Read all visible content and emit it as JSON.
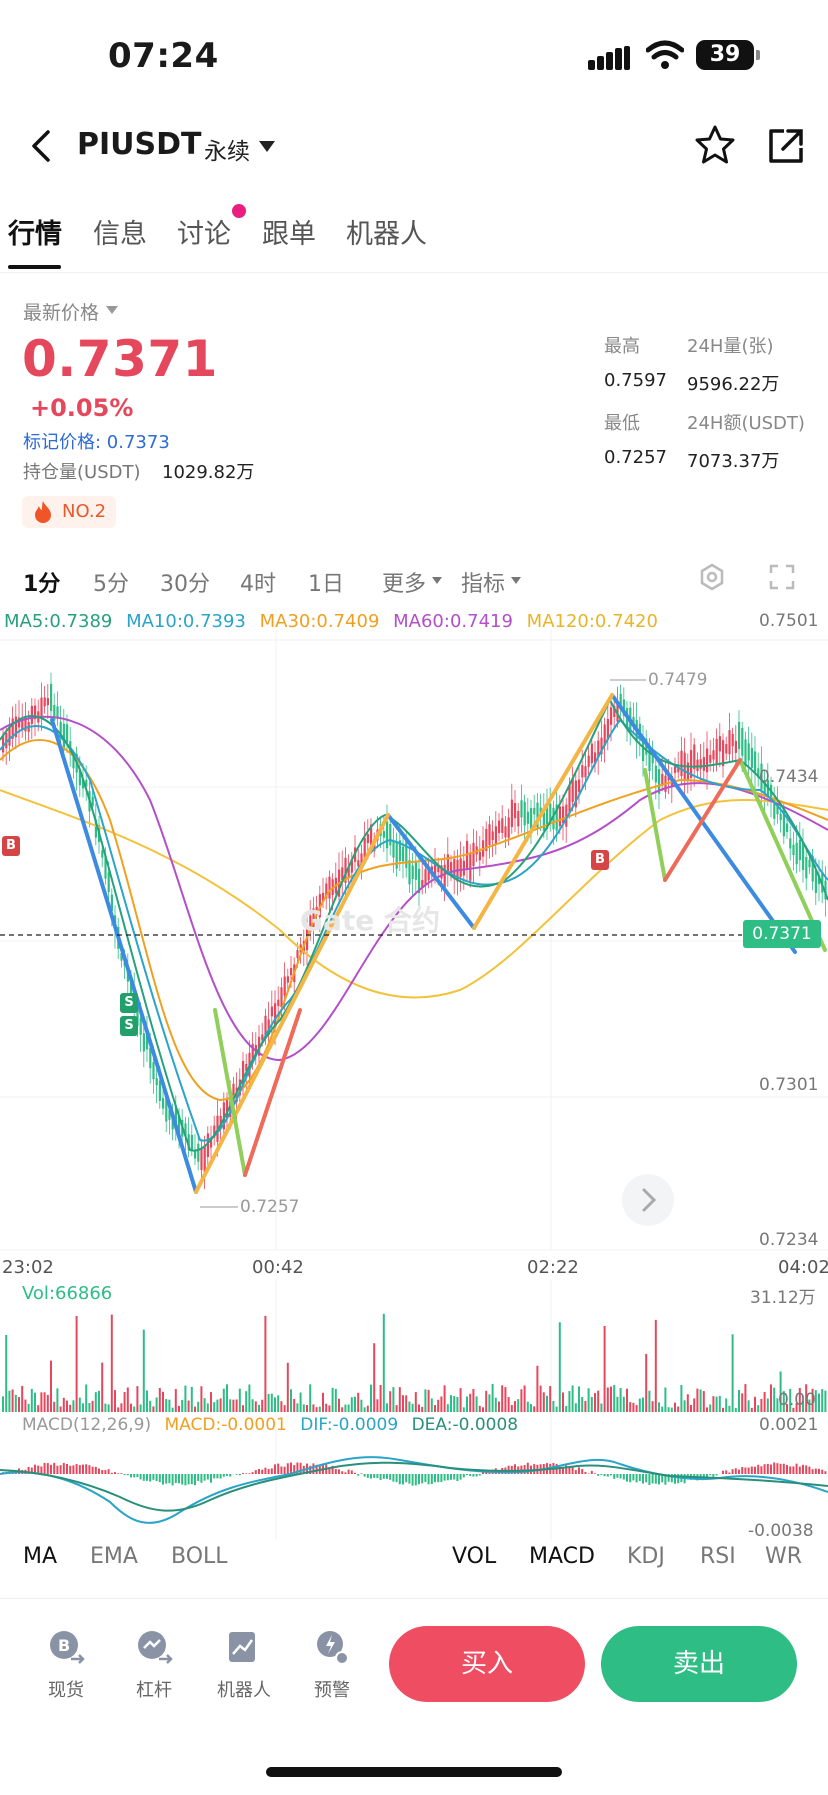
{
  "status": {
    "time": "07:24",
    "battery": "39"
  },
  "header": {
    "symbol": "PIUSDT",
    "contract": "永续",
    "icons": [
      "back-icon",
      "star-icon",
      "share-icon"
    ]
  },
  "tabs": [
    {
      "label": "行情",
      "active": true
    },
    {
      "label": "信息"
    },
    {
      "label": "讨论",
      "dot": true
    },
    {
      "label": "跟单"
    },
    {
      "label": "机器人"
    }
  ],
  "ticker": {
    "price_label": "最新价格",
    "price": "0.7371",
    "change": "+0.05%",
    "mark_price": "标记价格: 0.7373",
    "open_interest_label": "持仓量(USDT)",
    "open_interest": "1029.82万",
    "rank_badge": "NO.2",
    "high_label": "最高",
    "high": "0.7597",
    "low_label": "最低",
    "low": "0.7257",
    "vol_label": "24H量(张)",
    "vol": "9596.22万",
    "turnover_label": "24H额(USDT)",
    "turnover": "7073.37万"
  },
  "timeframes": {
    "items": [
      {
        "label": "1分",
        "active": true
      },
      {
        "label": "5分"
      },
      {
        "label": "30分"
      },
      {
        "label": "4时"
      },
      {
        "label": "1日"
      },
      {
        "label": "更多"
      },
      {
        "label": "指标"
      }
    ],
    "icons": [
      "settings-hex-icon",
      "fullscreen-icon"
    ]
  },
  "ma_legend": [
    {
      "text": "MA5:0.7389",
      "color": "#27a17b"
    },
    {
      "text": "MA10:0.7393",
      "color": "#2aa4c8"
    },
    {
      "text": "MA30:0.7409",
      "color": "#f0a020"
    },
    {
      "text": "MA60:0.7419",
      "color": "#b34fc9"
    },
    {
      "text": "MA120:0.7420",
      "color": "#f2c23c"
    }
  ],
  "chart_axis": {
    "price_ticks": [
      "0.7501",
      "0.7434",
      "0.7301",
      "0.7234"
    ],
    "current_price_tag": "0.7371",
    "high_annotation": "0.7479",
    "low_annotation": "0.7257",
    "time_ticks": [
      "23:02",
      "00:42",
      "02:22",
      "04:02"
    ],
    "markers": [
      "B",
      "S",
      "S",
      "B"
    ]
  },
  "volume": {
    "label": "Vol:66866",
    "max": "31.12万",
    "min": "0.00"
  },
  "macd": {
    "label": "MACD(12,26,9)",
    "macd": "MACD:-0.0001",
    "dif": "DIF:-0.0009",
    "dea": "DEA:-0.0008",
    "max": "0.0021",
    "min": "-0.0038"
  },
  "indicator_tabs": {
    "main": [
      "MA",
      "EMA",
      "BOLL"
    ],
    "sub": [
      "VOL",
      "MACD",
      "KDJ",
      "RSI",
      "WR"
    ]
  },
  "bottom_nav": [
    {
      "label": "现货",
      "icon": "bitcoin-swap-icon"
    },
    {
      "label": "杠杆",
      "icon": "leverage-icon"
    },
    {
      "label": "机器人",
      "icon": "robot-chart-icon"
    },
    {
      "label": "预警",
      "icon": "alert-icon"
    }
  ],
  "actions": {
    "buy": "买入",
    "sell": "卖出"
  },
  "colors": {
    "up": "#e5485c",
    "down": "#2ebd85",
    "accent_blue": "#2e6bd6"
  }
}
